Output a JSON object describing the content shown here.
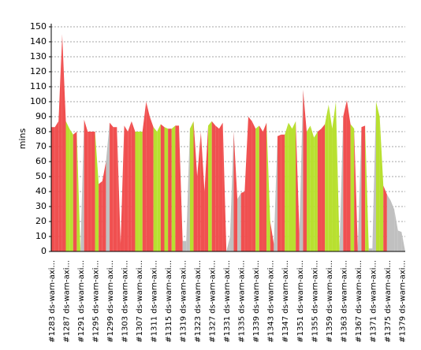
{
  "chart_data": {
    "type": "area",
    "ylabel": "mins",
    "ylim": [
      0,
      150
    ],
    "yticks": [
      0,
      10,
      20,
      30,
      40,
      50,
      60,
      70,
      80,
      90,
      100,
      110,
      120,
      130,
      140,
      150
    ],
    "grid": true,
    "categories": [
      "#1283 ds-warn-axi...",
      null,
      null,
      null,
      "#1287 ds-warn-axi...",
      null,
      null,
      null,
      "#1291 ds-warn-axi...",
      null,
      null,
      null,
      "#1295 ds-warn-axi...",
      null,
      null,
      null,
      "#1299 ds-warn-axi...",
      null,
      null,
      null,
      "#1303 ds-warn-axi...",
      null,
      null,
      null,
      "#1307 ds-warn-axi...",
      null,
      null,
      null,
      "#1311 ds-warn-axi...",
      null,
      null,
      null,
      "#1315 ds-warn-axi...",
      null,
      null,
      null,
      "#1319 ds-warn-axi...",
      null,
      null,
      null,
      "#1323 ds-warn-axi...",
      null,
      null,
      null,
      "#1327 ds-warn-axi...",
      null,
      null,
      null,
      "#1331 ds-warn-axi...",
      null,
      null,
      null,
      "#1335 ds-warn-axi...",
      null,
      null,
      null,
      "#1339 ds-warn-axi...",
      null,
      null,
      null,
      "#1343 ds-warn-axi...",
      null,
      null,
      null,
      "#1347 ds-warn-axi...",
      null,
      null,
      null,
      "#1351 ds-warn-axi...",
      null,
      null,
      null,
      "#1355 ds-warn-axi...",
      null,
      null,
      null,
      "#1359 ds-warn-axi...",
      null,
      null,
      null,
      "#1363 ds-warn-axi...",
      null,
      null,
      null,
      "#1367 ds-warn-axi...",
      null,
      null,
      null,
      "#1371 ds-warn-axi...",
      null,
      null,
      null,
      "#1375 ds-warn-axi...",
      null,
      null,
      null,
      "#1379 ds-warn-axi...",
      null
    ],
    "values": [
      83,
      83,
      87,
      145,
      87,
      82,
      78,
      80,
      0,
      88,
      80,
      80,
      80,
      45,
      47,
      60,
      86,
      83,
      83,
      5,
      84,
      80,
      87,
      80,
      80,
      80,
      100,
      90,
      83,
      80,
      85,
      83,
      82,
      82,
      84,
      84,
      7,
      7,
      82,
      87,
      50,
      80,
      40,
      84,
      87,
      84,
      82,
      86,
      0,
      10,
      80,
      35,
      39,
      40,
      90,
      87,
      82,
      84,
      80,
      86,
      20,
      5,
      77,
      78,
      78,
      86,
      82,
      87,
      12,
      108,
      80,
      84,
      76,
      80,
      82,
      85,
      98,
      82,
      100,
      2,
      90,
      101,
      85,
      82,
      2,
      83,
      84,
      2,
      2,
      100,
      90,
      44,
      38,
      34,
      28,
      14,
      13,
      0
    ],
    "point_colors": [
      "#f05050",
      "#f05050",
      "#f05050",
      "#f05050",
      "#b8e030",
      "#b8e030",
      "#f05050",
      "#b8e030",
      "#c0c0c0",
      "#f05050",
      "#f05050",
      "#f05050",
      "#b8e030",
      "#f05050",
      "#f05050",
      "#c0c0c0",
      "#f05050",
      "#f05050",
      "#f05050",
      "#f05050",
      "#f05050",
      "#f05050",
      "#f05050",
      "#b8e030",
      "#b8e030",
      "#f05050",
      "#f05050",
      "#f05050",
      "#b8e030",
      "#b8e030",
      "#f05050",
      "#b8e030",
      "#f05050",
      "#b8e030",
      "#f05050",
      "#f05050",
      "#c0c0c0",
      "#c0c0c0",
      "#b8e030",
      "#f05050",
      "#f05050",
      "#f05050",
      "#f05050",
      "#b8e030",
      "#f05050",
      "#f05050",
      "#f05050",
      "#f05050",
      "#c0c0c0",
      "#c0c0c0",
      "#f05050",
      "#c0c0c0",
      "#f05050",
      "#f05050",
      "#f05050",
      "#f05050",
      "#b8e030",
      "#f05050",
      "#f05050",
      "#b8e030",
      "#f05050",
      "#c0c0c0",
      "#f05050",
      "#f05050",
      "#b8e030",
      "#b8e030",
      "#b8e030",
      "#f05050",
      "#c0c0c0",
      "#f05050",
      "#b8e030",
      "#b8e030",
      "#b8e030",
      "#f05050",
      "#f05050",
      "#b8e030",
      "#b8e030",
      "#b8e030",
      "#b8e030",
      "#c0c0c0",
      "#f05050",
      "#f05050",
      "#b8e030",
      "#f05050",
      "#c0c0c0",
      "#f05050",
      "#b8e030",
      "#c0c0c0",
      "#c0c0c0",
      "#b8e030",
      "#b8e030",
      "#f05050",
      "#c0c0c0",
      "#c0c0c0",
      "#c0c0c0",
      "#c0c0c0",
      "#c0c0c0",
      "#c0c0c0"
    ]
  }
}
